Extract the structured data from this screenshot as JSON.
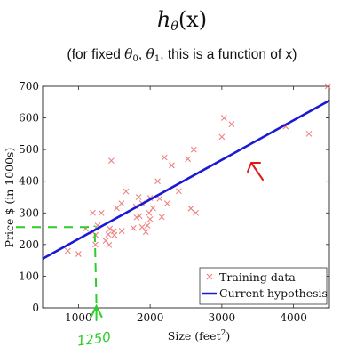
{
  "header": {
    "formula_base": "h",
    "formula_sub": "θ",
    "formula_arg": "(x)",
    "subtitle_prefix": "(for fixed ",
    "subtitle_theta0": "θ",
    "subtitle_theta0_sub": "0",
    "subtitle_sep": ", ",
    "subtitle_theta1": "θ",
    "subtitle_theta1_sub": "1",
    "subtitle_suffix": ", this is a function of x)"
  },
  "chart_data": {
    "type": "scatter",
    "ylabel": "Price $ (in 1000s)",
    "xlabel": "Size (feet",
    "xlabel_sup": "2",
    "xlabel_close": ")",
    "xlim": [
      500,
      4500
    ],
    "ylim": [
      0,
      700
    ],
    "x_ticks": [
      1000,
      2000,
      3000,
      4000
    ],
    "y_ticks": [
      0,
      100,
      200,
      300,
      400,
      500,
      600,
      700
    ],
    "legend_position": "bottom-right",
    "series": [
      {
        "name": "Training data",
        "marker": "x",
        "color": "#f08080",
        "points": [
          [
            2104,
            400
          ],
          [
            1600,
            330
          ],
          [
            2400,
            369
          ],
          [
            1416,
            232
          ],
          [
            3000,
            540
          ],
          [
            1985,
            300
          ],
          [
            1534,
            315
          ],
          [
            1427,
            199
          ],
          [
            1380,
            212
          ],
          [
            1494,
            242
          ],
          [
            1940,
            240
          ],
          [
            2000,
            347
          ],
          [
            1890,
            330
          ],
          [
            4478,
            700
          ],
          [
            1268,
            260
          ],
          [
            2300,
            450
          ],
          [
            1320,
            300
          ],
          [
            1236,
            200
          ],
          [
            2609,
            500
          ],
          [
            3031,
            600
          ],
          [
            1767,
            252
          ],
          [
            1888,
            255
          ],
          [
            1604,
            243
          ],
          [
            1962,
            260
          ],
          [
            3890,
            573
          ],
          [
            1100,
            250
          ],
          [
            1458,
            465
          ],
          [
            2526,
            470
          ],
          [
            2200,
            475
          ],
          [
            2637,
            300
          ],
          [
            1839,
            350
          ],
          [
            1000,
            170
          ],
          [
            2040,
            315
          ],
          [
            3137,
            580
          ],
          [
            1811,
            286
          ],
          [
            1437,
            250
          ],
          [
            1239,
            230
          ],
          [
            2132,
            345
          ],
          [
            4215,
            550
          ],
          [
            2162,
            287
          ],
          [
            1664,
            368
          ],
          [
            2238,
            330
          ],
          [
            2567,
            314
          ],
          [
            1200,
            300
          ],
          [
            852,
            180
          ],
          [
            1852,
            290
          ],
          [
            1203,
            240
          ],
          [
            2000,
            280
          ],
          [
            1500,
            230
          ],
          [
            1800,
            320
          ]
        ]
      },
      {
        "name": "Current hypothesis",
        "type": "line",
        "color": "#1a1ad6",
        "x": [
          500,
          4500
        ],
        "y": [
          155,
          655
        ]
      }
    ],
    "annotations": {
      "handwritten_x_label": "1250",
      "handwritten_x_value": 1250,
      "arrow_color": "#e01818",
      "handwriting_color": "#2ecc2e"
    }
  }
}
